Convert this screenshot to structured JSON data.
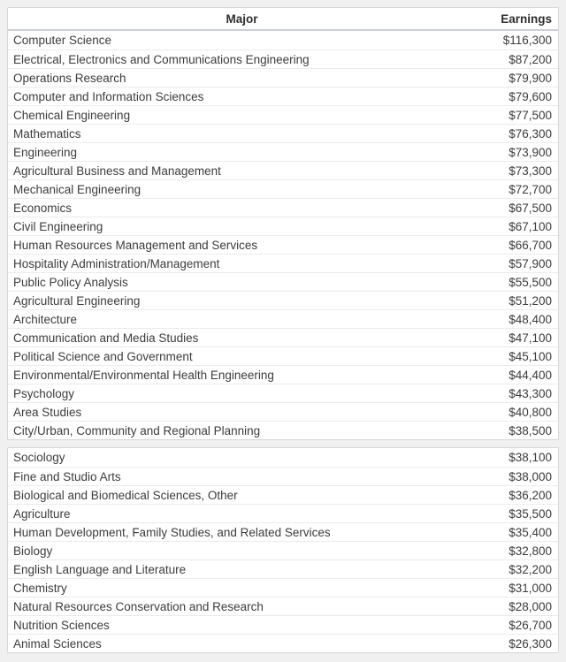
{
  "chart_data": {
    "type": "table",
    "title": "",
    "columns": [
      "Major",
      "Earnings"
    ],
    "sections": [
      {
        "rows": [
          {
            "major": "Computer Science",
            "earnings": "$116,300"
          },
          {
            "major": "Electrical, Electronics and Communications Engineering",
            "earnings": "$87,200"
          },
          {
            "major": "Operations Research",
            "earnings": "$79,900"
          },
          {
            "major": "Computer and Information Sciences",
            "earnings": "$79,600"
          },
          {
            "major": "Chemical Engineering",
            "earnings": "$77,500"
          },
          {
            "major": "Mathematics",
            "earnings": "$76,300"
          },
          {
            "major": "Engineering",
            "earnings": "$73,900"
          },
          {
            "major": "Agricultural Business and Management",
            "earnings": "$73,300"
          },
          {
            "major": "Mechanical Engineering",
            "earnings": "$72,700"
          },
          {
            "major": "Economics",
            "earnings": "$67,500"
          },
          {
            "major": "Civil Engineering",
            "earnings": "$67,100"
          },
          {
            "major": "Human Resources Management and Services",
            "earnings": "$66,700"
          },
          {
            "major": "Hospitality Administration/Management",
            "earnings": "$57,900"
          },
          {
            "major": "Public Policy Analysis",
            "earnings": "$55,500"
          },
          {
            "major": "Agricultural Engineering",
            "earnings": "$51,200"
          },
          {
            "major": "Architecture",
            "earnings": "$48,400"
          },
          {
            "major": "Communication and Media Studies",
            "earnings": "$47,100"
          },
          {
            "major": "Political Science and Government",
            "earnings": "$45,100"
          },
          {
            "major": "Environmental/Environmental Health Engineering",
            "earnings": "$44,400"
          },
          {
            "major": "Psychology",
            "earnings": "$43,300"
          },
          {
            "major": "Area Studies",
            "earnings": "$40,800"
          },
          {
            "major": "City/Urban, Community and Regional Planning",
            "earnings": "$38,500"
          }
        ]
      },
      {
        "rows": [
          {
            "major": "Sociology",
            "earnings": "$38,100"
          },
          {
            "major": "Fine and Studio Arts",
            "earnings": "$38,000"
          },
          {
            "major": "Biological and Biomedical Sciences, Other",
            "earnings": "$36,200"
          },
          {
            "major": "Agriculture",
            "earnings": "$35,500"
          },
          {
            "major": "Human Development, Family Studies, and Related Services",
            "earnings": "$35,400"
          },
          {
            "major": "Biology",
            "earnings": "$32,800"
          },
          {
            "major": "English Language and Literature",
            "earnings": "$32,200"
          },
          {
            "major": "Chemistry",
            "earnings": "$31,000"
          },
          {
            "major": "Natural Resources Conservation and Research",
            "earnings": "$28,000"
          },
          {
            "major": "Nutrition Sciences",
            "earnings": "$26,700"
          },
          {
            "major": "Animal Sciences",
            "earnings": "$26,300"
          }
        ]
      }
    ],
    "layout": {
      "header_in_first_section_only": true,
      "row_background": "#ffffff",
      "page_background": "#f0f0f0",
      "separator_color": "#ebebeb",
      "header_border_color": "#ccd0d6",
      "text_color": "#3c3c3c"
    }
  }
}
